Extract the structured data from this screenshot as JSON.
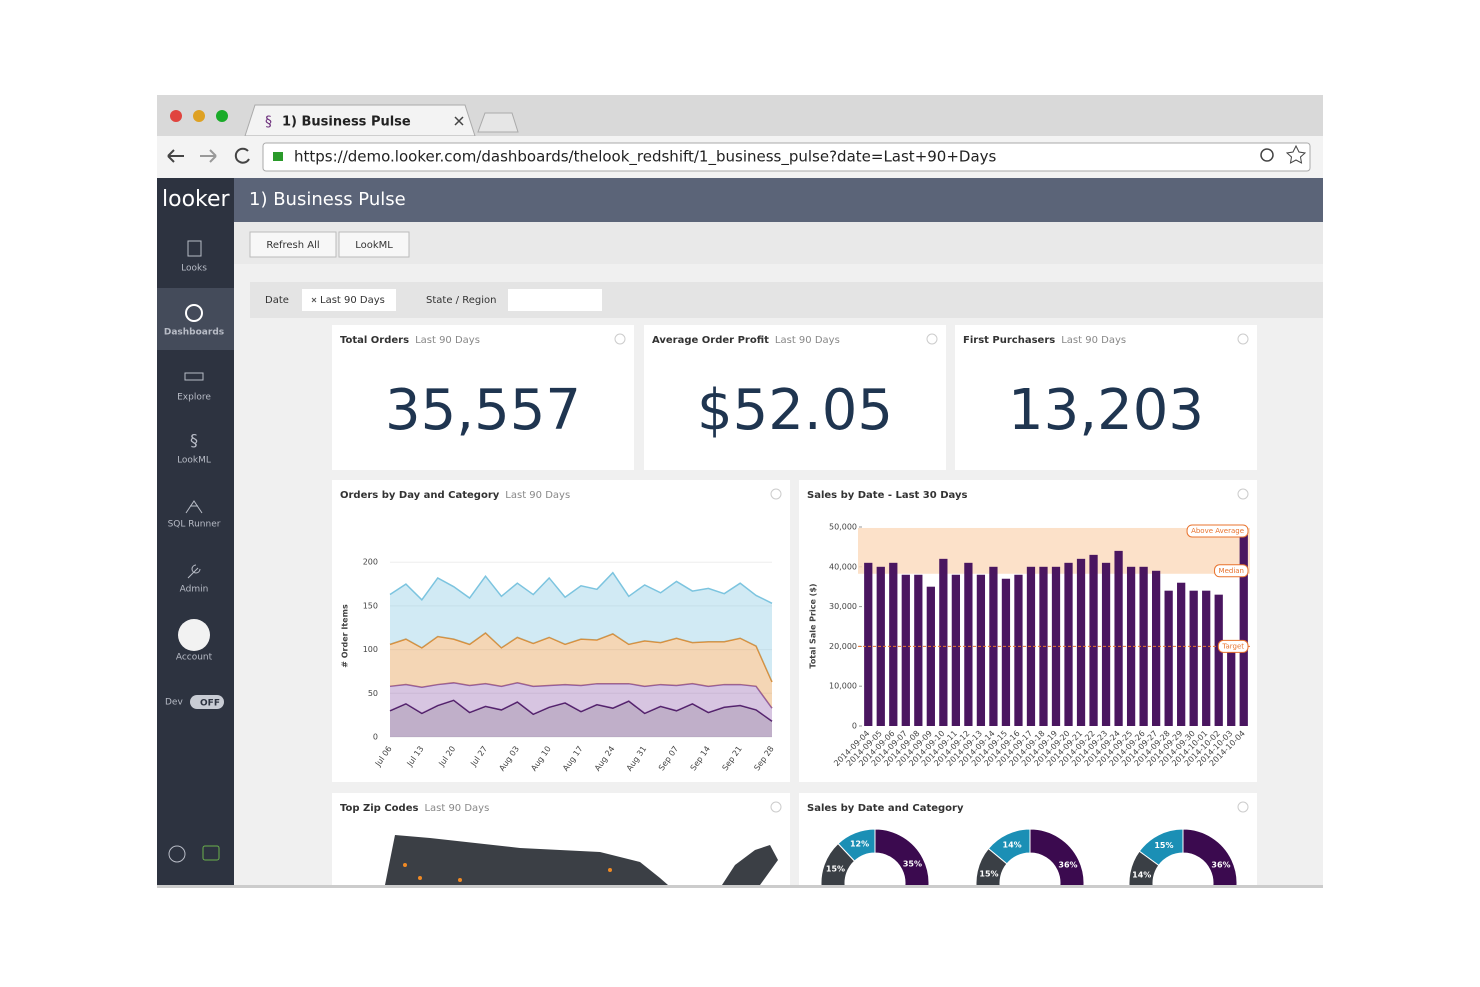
{
  "browser": {
    "tab_title": "1) Business Pulse",
    "url": "https://demo.looker.com/dashboards/thelook_redshift/1_business_pulse?date=Last+90+Days"
  },
  "sidebar": {
    "logo": "looker",
    "items": [
      "Looks",
      "Dashboards",
      "Explore",
      "LookML",
      "SQL Runner",
      "Admin",
      "Account"
    ],
    "dev_label": "Dev",
    "dev_toggle": "OFF"
  },
  "header": {
    "title": "1) Business Pulse"
  },
  "toolbar": {
    "buttons": [
      "Refresh All",
      "LookML"
    ]
  },
  "filters": {
    "date_label": "Date",
    "date_value": "Last 90 Days",
    "state_label": "State / Region"
  },
  "tiles": [
    {
      "title": "Total Orders",
      "subtitle": "Last 90 Days",
      "value": "35,557"
    },
    {
      "title": "Average Order Profit",
      "subtitle": "Last 90 Days",
      "value": "$52.05"
    },
    {
      "title": "First Purchasers",
      "subtitle": "Last 90 Days",
      "value": "13,203"
    }
  ],
  "map_tile": {
    "title": "Top Zip Codes",
    "subtitle": "Last 90 Days"
  },
  "chart_data": [
    {
      "type": "line",
      "stacked": true,
      "title": "Orders by Day and Category",
      "subtitle": "Last 90 Days",
      "y_label": "# Order Items",
      "categories": [
        "Jul 06",
        null,
        "Jul 13",
        null,
        "Jul 20",
        null,
        "Jul 27",
        null,
        "Aug 03",
        null,
        "Aug 10",
        null,
        "Aug 17",
        null,
        "Aug 24",
        null,
        "Aug 31",
        null,
        "Sep 07",
        null,
        "Sep 14",
        null,
        "Sep 21",
        null,
        "Sep 28"
      ],
      "ylim": [
        0,
        230
      ],
      "yticks": [
        0,
        50,
        100,
        150,
        200
      ],
      "series": [
        {
          "color": "#4b1a63",
          "values": [
            30,
            38,
            27,
            36,
            42,
            28,
            35,
            31,
            40,
            26,
            34,
            39,
            29,
            37,
            33,
            41,
            27,
            35,
            30,
            38,
            28,
            34,
            36,
            31,
            18
          ]
        },
        {
          "color": "#8d5aa8",
          "values": [
            28,
            22,
            30,
            24,
            20,
            31,
            26,
            27,
            22,
            32,
            25,
            21,
            30,
            24,
            28,
            20,
            31,
            25,
            29,
            23,
            30,
            26,
            24,
            27,
            15
          ]
        },
        {
          "color": "#e08a2c",
          "values": [
            48,
            52,
            45,
            55,
            50,
            47,
            58,
            44,
            52,
            49,
            55,
            46,
            53,
            50,
            57,
            45,
            52,
            48,
            54,
            47,
            51,
            49,
            53,
            46,
            30
          ]
        },
        {
          "color": "#7cc4df",
          "values": [
            57,
            63,
            55,
            67,
            60,
            53,
            65,
            59,
            62,
            56,
            68,
            54,
            61,
            58,
            70,
            55,
            64,
            57,
            65,
            59,
            61,
            55,
            63,
            58,
            90
          ]
        }
      ]
    },
    {
      "type": "bar",
      "title": "Sales by Date - Last 30 Days",
      "y_label": "Total Sale Price ($)",
      "color": "#4a1660",
      "categories": [
        "2014-09-04",
        "2014-09-05",
        "2014-09-06",
        "2014-09-07",
        "2014-09-08",
        "2014-09-09",
        "2014-09-10",
        "2014-09-11",
        "2014-09-12",
        "2014-09-13",
        "2014-09-14",
        "2014-09-15",
        "2014-09-16",
        "2014-09-17",
        "2014-09-18",
        "2014-09-19",
        "2014-09-20",
        "2014-09-21",
        "2014-09-22",
        "2014-09-23",
        "2014-09-24",
        "2014-09-25",
        "2014-09-26",
        "2014-09-27",
        "2014-09-28",
        "2014-09-29",
        "2014-09-30",
        "2014-10-01",
        "2014-10-02",
        "2014-10-03",
        "2014-10-04"
      ],
      "values": [
        41000,
        40000,
        41000,
        38000,
        38000,
        35000,
        42000,
        38000,
        41000,
        38000,
        40000,
        37000,
        38000,
        40000,
        40000,
        40000,
        41000,
        42000,
        43000,
        41000,
        44000,
        40000,
        40000,
        39000,
        34000,
        36000,
        34000,
        34000,
        33000,
        19000,
        48000
      ],
      "ylim": [
        0,
        50000
      ],
      "yticks": [
        0,
        {
          "value": 10000,
          "label": "10,000"
        },
        {
          "value": 20000,
          "label": "20,000"
        },
        {
          "value": 30000,
          "label": "30,000"
        },
        {
          "value": 40000,
          "label": "40,000"
        },
        {
          "value": 50000,
          "label": "50,000"
        }
      ],
      "references": [
        {
          "label": "Above Average",
          "value": 49000
        },
        {
          "label": "Median",
          "value": 39000
        },
        {
          "label": "Target",
          "value": 20000
        }
      ],
      "reference_color": "#e8732e"
    },
    {
      "type": "pie",
      "title": "Sales by Date and Category",
      "colors": [
        "#1b8fb5",
        "#3b0a4f",
        "#3a3f45"
      ],
      "series": [
        {
          "values": [
            12,
            35,
            15
          ],
          "value_labels": [
            "12%",
            "35%",
            "15%"
          ]
        },
        {
          "values": [
            14,
            36,
            15
          ],
          "value_labels": [
            "14%",
            "36%",
            "15%"
          ]
        },
        {
          "values": [
            15,
            36,
            14
          ],
          "value_labels": [
            "15%",
            "36%",
            "14%"
          ]
        }
      ]
    }
  ]
}
